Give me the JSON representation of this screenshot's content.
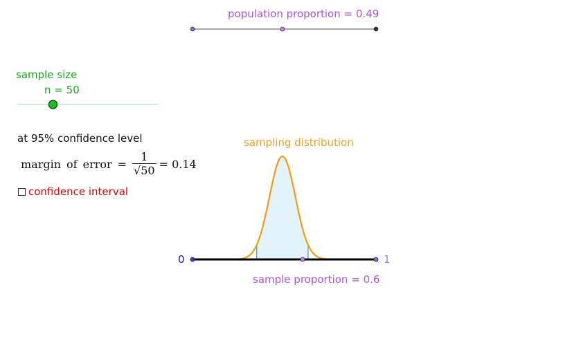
{
  "population": {
    "label_text": "population proportion",
    "value": "0.49",
    "proportion": 0.49
  },
  "sample_size": {
    "title": "sample size",
    "label_text": "n",
    "value": "50",
    "n": 50,
    "slider_fraction": 0.25
  },
  "confidence": {
    "text": "at 95% confidence level"
  },
  "margin": {
    "word1": "margin",
    "word2": "of",
    "word3": "error",
    "eq": "=",
    "numerator": "1",
    "denominator": "√50",
    "result": "= 0.14"
  },
  "ci_checkbox": {
    "label": "confidence interval",
    "checked": false
  },
  "sampling": {
    "title": "sampling distribution",
    "axis_start": "0",
    "axis_end": "1",
    "sample_label_text": "sample proportion",
    "sample_value": "0.6",
    "sample_proportion": 0.6,
    "shaded_low": 0.35,
    "shaded_high": 0.63
  },
  "colors": {
    "purple": "#b34fdf",
    "green": "#11b011",
    "orange": "#f0a020",
    "red": "#e00000",
    "blue": "#1010cc",
    "shade": "#e3f3fc"
  }
}
